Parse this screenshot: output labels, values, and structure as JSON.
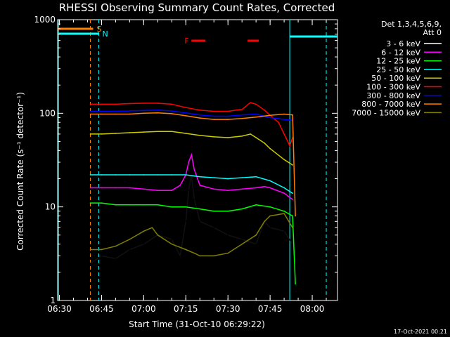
{
  "chart_data": {
    "type": "line",
    "title": "RHESSI Observing Summary Count Rates, Corrected",
    "xlabel": "Start Time (31-Oct-10 06:29:22)",
    "ylabel": "Corrected Count Rate (s⁻¹ detector⁻¹)",
    "y_scale": "log",
    "xlim": [
      "06:29:22",
      "08:09:00"
    ],
    "ylim": [
      1,
      1000
    ],
    "x_ticks": [
      "06:30",
      "06:45",
      "07:00",
      "07:15",
      "07:30",
      "07:45",
      "08:00"
    ],
    "y_ticks": [
      "1",
      "10",
      "100",
      "1000"
    ],
    "legend_header": [
      "Det 1,3,4,5,6,9,",
      "Att 0"
    ],
    "legend_placement": "right",
    "footer": "17-Oct-2021 00:21",
    "series": [
      {
        "name": "3 - 6 keV",
        "color": "#000000",
        "x": [
          "06:41",
          "06:45",
          "06:50",
          "06:55",
          "07:00",
          "07:05",
          "07:10",
          "07:13",
          "07:15",
          "07:16",
          "07:17",
          "07:18",
          "07:20",
          "07:25",
          "07:30",
          "07:35",
          "07:40",
          "07:43",
          "07:45",
          "07:50",
          "07:53"
        ],
        "y": [
          2.5,
          3,
          2.8,
          3.5,
          4,
          5,
          4.5,
          3,
          7,
          15,
          22,
          12,
          7,
          6,
          5,
          4.5,
          4,
          7,
          6,
          5.5,
          4
        ]
      },
      {
        "name": "6 - 12 keV",
        "color": "#ff00ff",
        "x": [
          "06:41",
          "06:45",
          "06:50",
          "06:55",
          "07:00",
          "07:05",
          "07:10",
          "07:13",
          "07:15",
          "07:16",
          "07:17",
          "07:18",
          "07:20",
          "07:25",
          "07:30",
          "07:35",
          "07:40",
          "07:43",
          "07:45",
          "07:50",
          "07:53"
        ],
        "y": [
          16,
          16,
          16,
          16,
          15.5,
          15,
          15,
          17,
          22,
          30,
          36,
          25,
          17,
          15.5,
          15,
          15.5,
          16,
          16.5,
          16,
          14,
          12
        ]
      },
      {
        "name": "12 - 25 keV",
        "color": "#00ff00",
        "x": [
          "06:41",
          "06:45",
          "06:50",
          "06:55",
          "07:00",
          "07:05",
          "07:10",
          "07:15",
          "07:20",
          "07:25",
          "07:30",
          "07:35",
          "07:40",
          "07:45",
          "07:50",
          "07:53",
          "07:54"
        ],
        "y": [
          11,
          11,
          10.5,
          10.5,
          10.5,
          10.5,
          10,
          10,
          9.5,
          9,
          9,
          9.5,
          10.5,
          10,
          9,
          8,
          1.5
        ]
      },
      {
        "name": "25 - 50 keV",
        "color": "#00ffff",
        "x": [
          "06:41",
          "06:45",
          "06:50",
          "06:55",
          "07:00",
          "07:05",
          "07:10",
          "07:15",
          "07:20",
          "07:25",
          "07:30",
          "07:35",
          "07:40",
          "07:45",
          "07:50",
          "07:53"
        ],
        "y": [
          22,
          22,
          22,
          22,
          22,
          22,
          22,
          22,
          21,
          20.5,
          20,
          20.5,
          21,
          19,
          16,
          14
        ]
      },
      {
        "name": "50 - 100 keV",
        "color": "#cccc00",
        "x": [
          "06:41",
          "06:45",
          "06:50",
          "06:55",
          "07:00",
          "07:05",
          "07:10",
          "07:15",
          "07:20",
          "07:25",
          "07:30",
          "07:35",
          "07:38",
          "07:40",
          "07:43",
          "07:45",
          "07:50",
          "07:53"
        ],
        "y": [
          60,
          60,
          61,
          62,
          63,
          64,
          64,
          61,
          58,
          56,
          55,
          57,
          60,
          55,
          48,
          42,
          32,
          28
        ]
      },
      {
        "name": "100 - 300 keV",
        "color": "#ff0000",
        "x": [
          "06:41",
          "06:45",
          "06:50",
          "06:55",
          "07:00",
          "07:05",
          "07:10",
          "07:15",
          "07:20",
          "07:25",
          "07:30",
          "07:35",
          "07:38",
          "07:40",
          "07:43",
          "07:45",
          "07:48",
          "07:50",
          "07:52",
          "07:53"
        ],
        "y": [
          125,
          125,
          125,
          127,
          128,
          128,
          125,
          115,
          108,
          105,
          105,
          110,
          130,
          125,
          108,
          95,
          80,
          60,
          45,
          55
        ]
      },
      {
        "name": "300 - 800 keV",
        "color": "#0000ff",
        "x": [
          "06:41",
          "06:45",
          "06:50",
          "06:55",
          "07:00",
          "07:05",
          "07:10",
          "07:15",
          "07:20",
          "07:25",
          "07:30",
          "07:35",
          "07:40",
          "07:45",
          "07:50",
          "07:53"
        ],
        "y": [
          105,
          105,
          105,
          106,
          107,
          108,
          106,
          101,
          96,
          93,
          93,
          96,
          98,
          90,
          86,
          84
        ]
      },
      {
        "name": "800 - 7000 keV",
        "color": "#ff8000",
        "x": [
          "06:41",
          "06:45",
          "06:50",
          "06:55",
          "07:00",
          "07:05",
          "07:10",
          "07:15",
          "07:20",
          "07:25",
          "07:30",
          "07:35",
          "07:40",
          "07:45",
          "07:50",
          "07:53",
          "07:54"
        ],
        "y": [
          98,
          98,
          98,
          98,
          100,
          101,
          99,
          94,
          89,
          86,
          86,
          88,
          91,
          95,
          98,
          96,
          8
        ]
      },
      {
        "name": "7000 - 15000 keV",
        "color": "#808000",
        "x": [
          "06:41",
          "06:45",
          "06:50",
          "06:55",
          "07:00",
          "07:03",
          "07:05",
          "07:10",
          "07:15",
          "07:18",
          "07:20",
          "07:25",
          "07:30",
          "07:35",
          "07:40",
          "07:43",
          "07:45",
          "07:50",
          "07:53"
        ],
        "y": [
          3.5,
          3.5,
          3.8,
          4.5,
          5.5,
          6,
          5,
          4,
          3.5,
          3.2,
          3,
          3,
          3.2,
          4,
          5,
          7,
          8,
          8.5,
          6
        ]
      }
    ],
    "annotations": [
      {
        "label": "S",
        "color": "#ff8000",
        "x_start": "06:29:22",
        "x_end": "06:42"
      },
      {
        "label": "N",
        "color": "#00ffff",
        "x_start": "06:29:22",
        "x_end": "06:44"
      },
      {
        "label": "F",
        "color": "#ff0000",
        "x_start": "07:17",
        "x_end": "07:22"
      },
      {
        "label": "",
        "color": "#ff0000",
        "x_start": "07:37",
        "x_end": "07:41"
      }
    ],
    "vertical_lines": [
      {
        "x": "06:29:40",
        "color": "#00ffff",
        "style": "solid"
      },
      {
        "x": "06:41",
        "color": "#ff8000",
        "style": "dashed"
      },
      {
        "x": "06:44",
        "color": "#00ffff",
        "style": "dashed"
      },
      {
        "x": "07:52",
        "color": "#00ffff",
        "style": "solid"
      },
      {
        "x": "08:05",
        "color": "#00ffff",
        "style": "dashed"
      }
    ],
    "horizontal_segments": [
      {
        "color": "#00ffff",
        "x_start": "07:52",
        "x_end": "08:09",
        "y": 660
      }
    ]
  }
}
